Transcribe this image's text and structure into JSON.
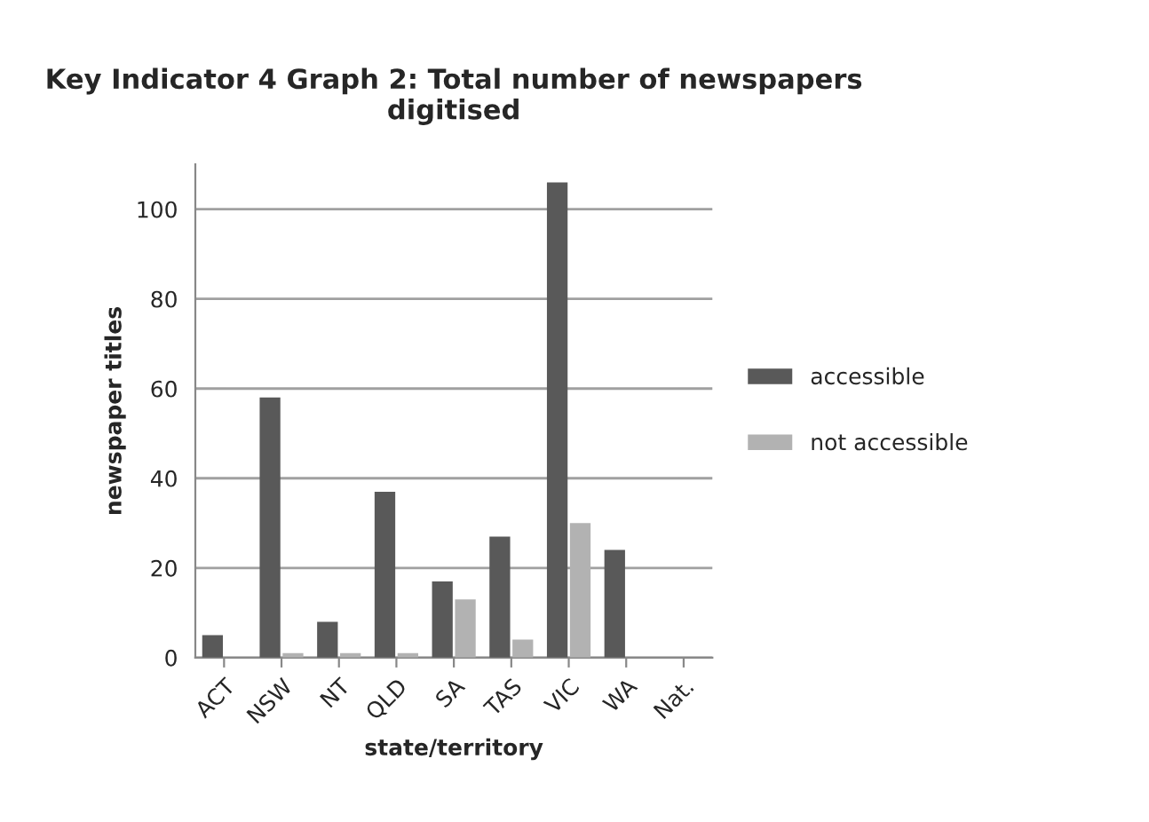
{
  "chart_data": {
    "type": "bar",
    "title": "Key Indicator 4 Graph 2: Total number of newspapers digitised",
    "xlabel": "state/territory",
    "ylabel": "newspaper titles",
    "categories": [
      "ACT",
      "NSW",
      "NT",
      "QLD",
      "SA",
      "TAS",
      "VIC",
      "WA",
      "Nat."
    ],
    "series": [
      {
        "name": "accessible",
        "color": "#595959",
        "values": [
          5,
          58,
          8,
          37,
          17,
          27,
          106,
          24,
          null
        ]
      },
      {
        "name": "not accessible",
        "color": "#b2b2b2",
        "values": [
          null,
          1,
          1,
          1,
          13,
          4,
          30,
          null,
          null
        ]
      }
    ],
    "ylim": [
      0,
      110
    ],
    "yticks": [
      0,
      20,
      40,
      60,
      80,
      100
    ],
    "grid": "y",
    "legend": "right"
  }
}
